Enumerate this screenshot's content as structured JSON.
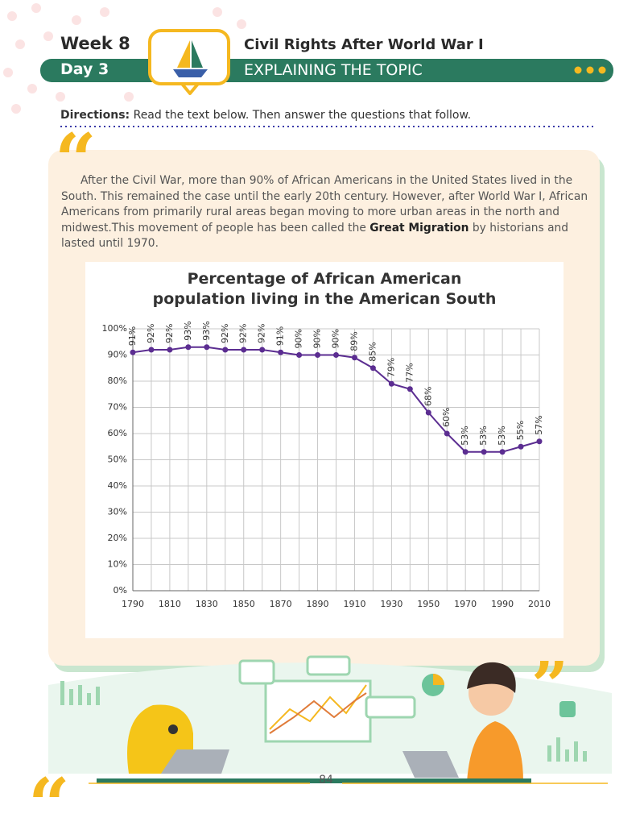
{
  "header": {
    "week": "Week 8",
    "day": "Day 3",
    "title": "Civil Rights After World War I",
    "subtitle": "EXPLAINING THE TOPIC"
  },
  "directions": {
    "label": "Directions:",
    "text": "Read the text below. Then answer the questions that follow."
  },
  "passage": {
    "text_before": "After the Civil War, more than 90% of African Americans in the United States lived in the South. This remained the case until the early 20th century. However, after World War I, African Americans from primarily rural areas began moving to more urban areas in the north and midwest.This movement of people has been called the",
    "bold": "Great Migration",
    "text_after": "by historians and lasted until 1970."
  },
  "chart_data": {
    "type": "line",
    "title": "Percentage of African American population living in the American South",
    "x": [
      1790,
      1800,
      1810,
      1820,
      1830,
      1840,
      1850,
      1860,
      1870,
      1880,
      1890,
      1900,
      1910,
      1920,
      1930,
      1940,
      1950,
      1960,
      1970,
      1980,
      1990,
      2000,
      2010
    ],
    "values": [
      91,
      92,
      92,
      93,
      93,
      92,
      92,
      92,
      91,
      90,
      90,
      90,
      89,
      85,
      79,
      77,
      68,
      60,
      53,
      53,
      53,
      55,
      57
    ],
    "value_labels": [
      "91%",
      "92%",
      "92%",
      "93%",
      "93%",
      "92%",
      "92%",
      "92%",
      "91%",
      "90%",
      "90%",
      "90%",
      "89%",
      "85%",
      "79%",
      "77%",
      "68%",
      "60%",
      "53%",
      "53%",
      "53%",
      "55%",
      "57%"
    ],
    "color": "#5b2d91",
    "xlim": [
      1790,
      2010
    ],
    "xticks": [
      1790,
      1810,
      1830,
      1850,
      1870,
      1890,
      1910,
      1930,
      1950,
      1970,
      1990,
      2010
    ],
    "ylim": [
      0,
      100
    ],
    "yticks": [
      {
        "value": 0,
        "label": "0%"
      },
      {
        "value": 10,
        "label": "10%"
      },
      {
        "value": 20,
        "label": "20%"
      },
      {
        "value": 30,
        "label": "30%"
      },
      {
        "value": 40,
        "label": "40%"
      },
      {
        "value": 50,
        "label": "50%"
      },
      {
        "value": 60,
        "label": "60%"
      },
      {
        "value": 70,
        "label": "70%"
      },
      {
        "value": 80,
        "label": "80%"
      },
      {
        "value": 90,
        "label": "90%"
      },
      {
        "value": 100,
        "label": "100%"
      }
    ],
    "grid": true
  },
  "page_number": "84"
}
